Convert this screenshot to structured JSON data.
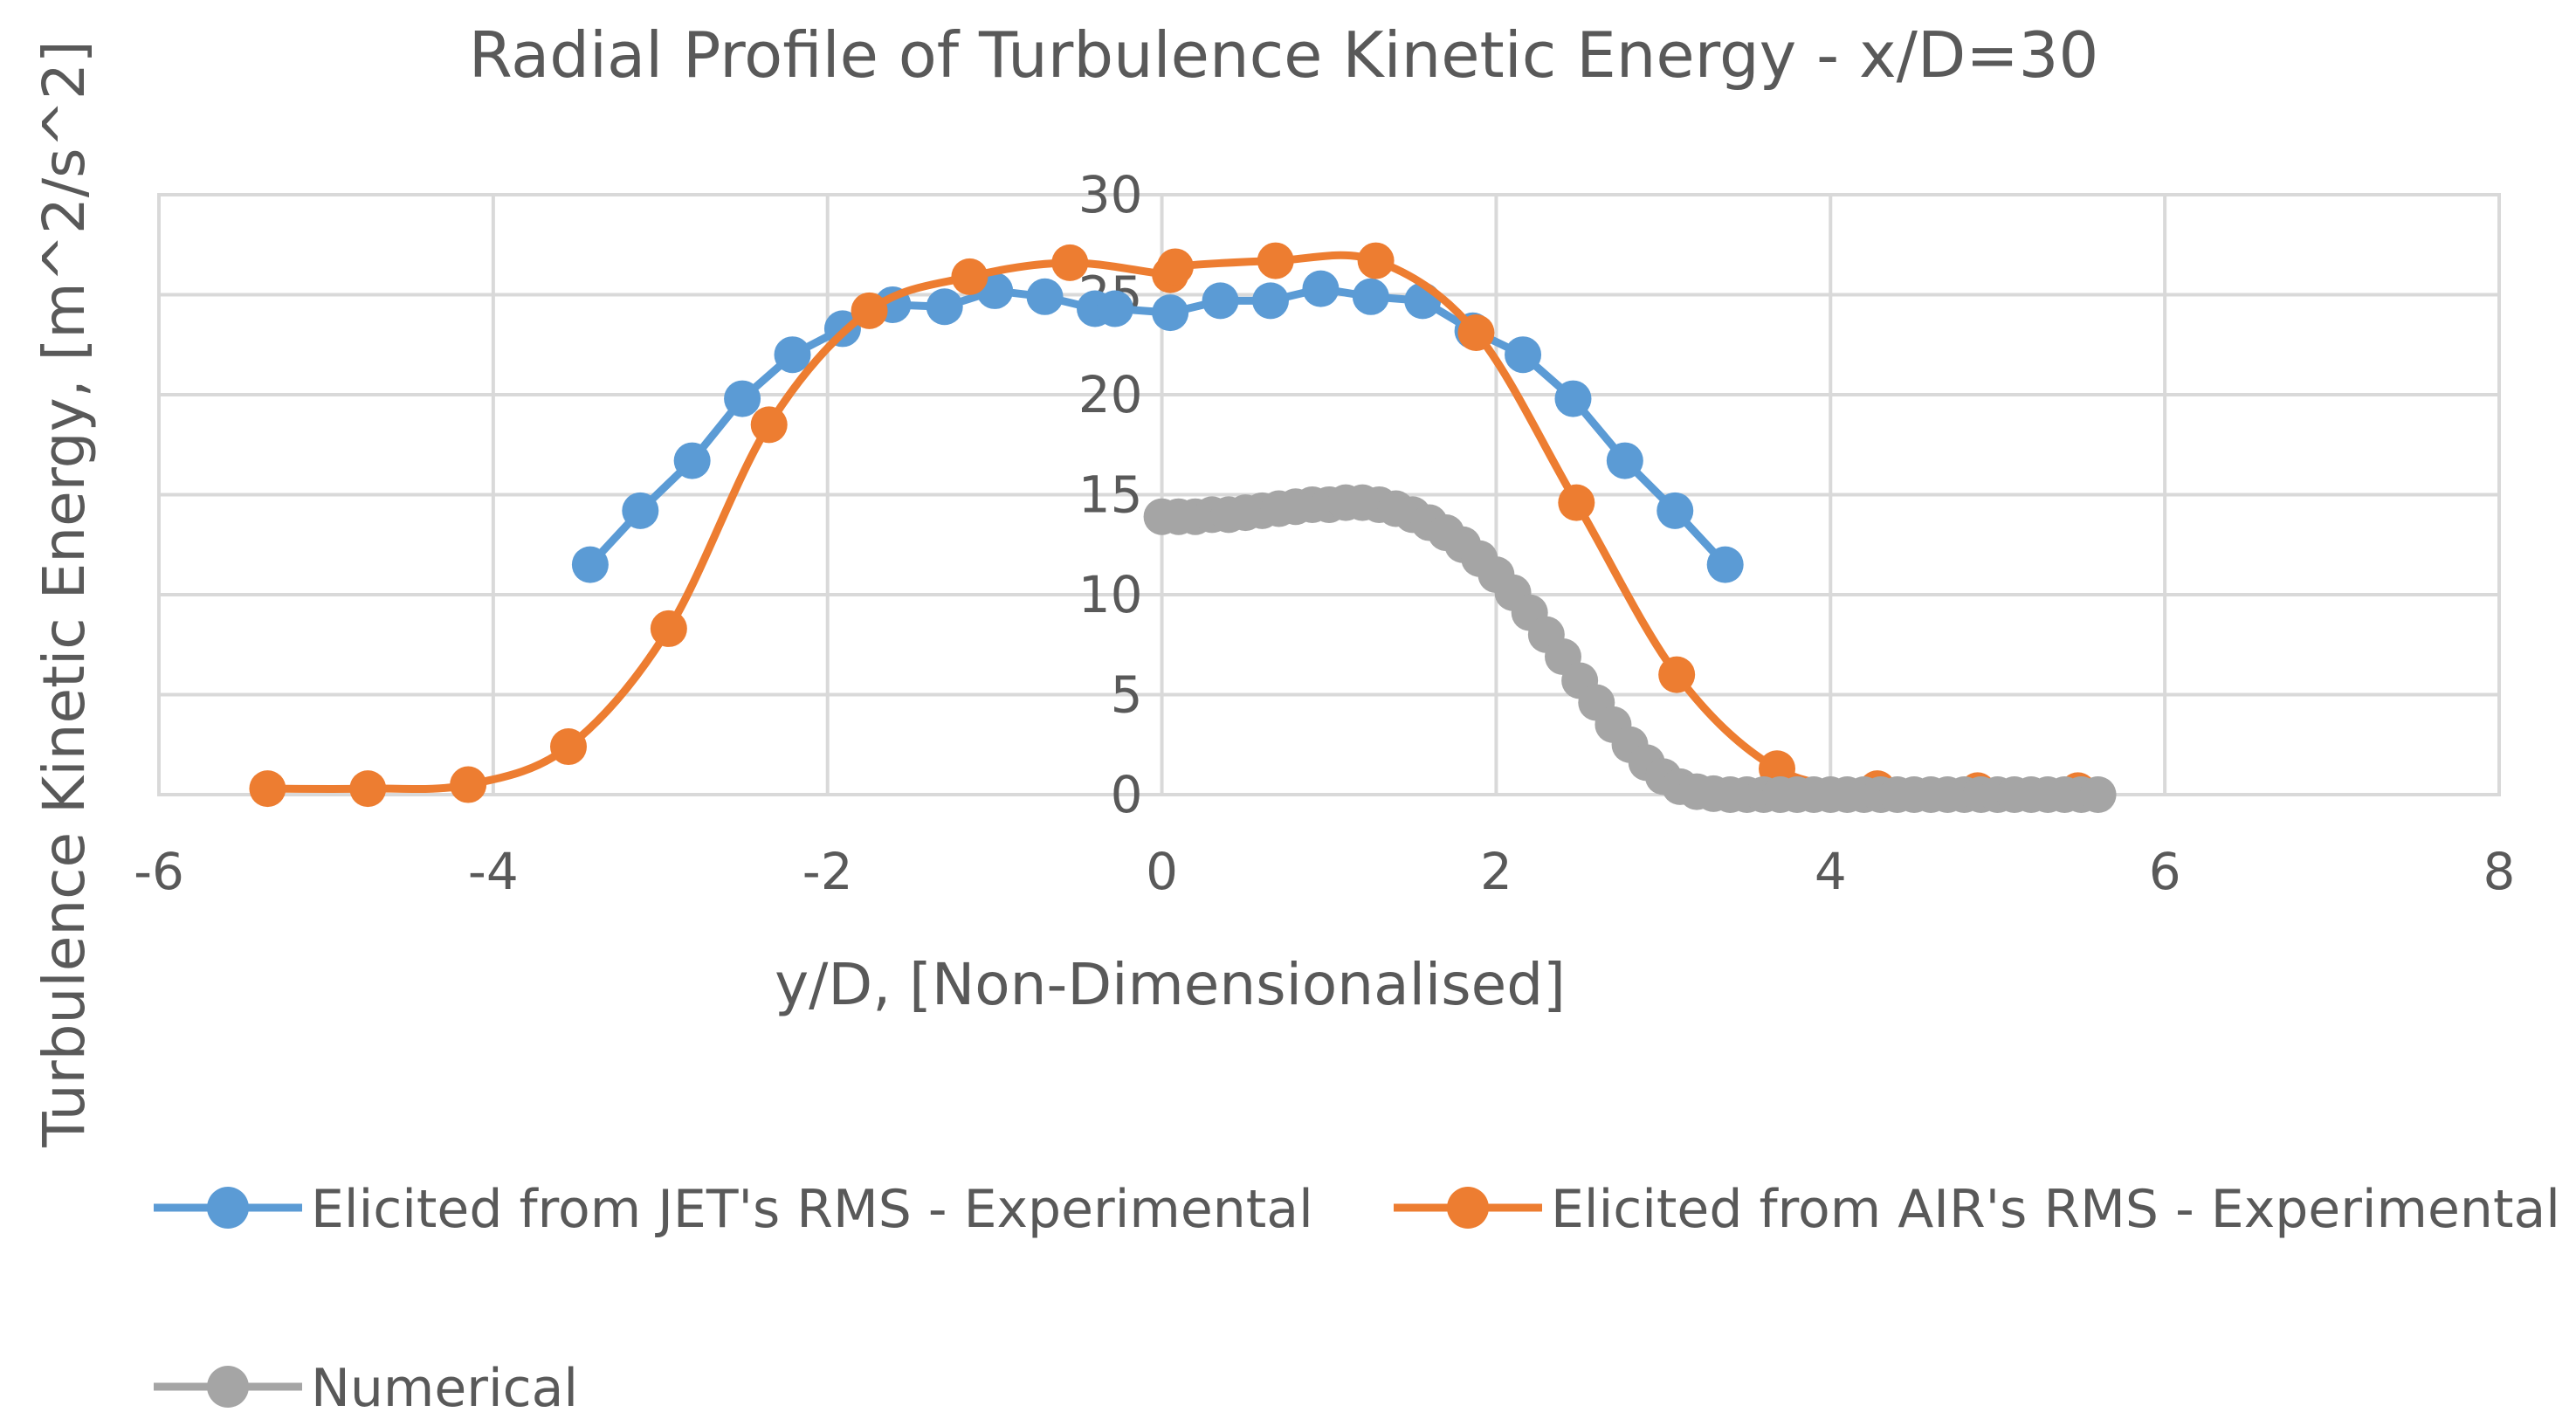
{
  "chart_data": {
    "type": "line",
    "title": "Radial Profile of Turbulence Kinetic Energy - x/D=30",
    "xlabel": "y/D, [Non-Dimensionalised]",
    "ylabel": "Turbulence Kinetic Energy, [m^2/s^2]",
    "xlim": [
      -6,
      8
    ],
    "ylim": [
      0,
      30
    ],
    "xticks": [
      -6,
      -4,
      -2,
      0,
      2,
      4,
      6,
      8
    ],
    "yticks": [
      0,
      5,
      10,
      15,
      20,
      25,
      30
    ],
    "grid": true,
    "legend_position": "bottom",
    "series": [
      {
        "name": "Elicited from JET's RMS - Experimental",
        "color": "#5b9bd5",
        "smooth": false,
        "markers": true,
        "x": [
          -3.42,
          -3.12,
          -2.81,
          -2.51,
          -2.21,
          -1.91,
          -1.61,
          -1.3,
          -1.0,
          -0.7,
          -0.4,
          -0.28,
          0.05,
          0.35,
          0.65,
          0.95,
          1.25,
          1.56,
          1.86,
          2.16,
          2.46,
          2.77,
          3.07,
          3.37
        ],
        "y": [
          11.5,
          14.2,
          16.7,
          19.8,
          22.0,
          23.3,
          24.5,
          24.4,
          25.2,
          24.9,
          24.3,
          24.3,
          24.1,
          24.7,
          24.7,
          25.3,
          24.9,
          24.7,
          23.2,
          22.0,
          19.8,
          16.7,
          14.2,
          11.5
        ]
      },
      {
        "name": "Elicited from AIR's RMS - Experimental",
        "color": "#ed7d31",
        "smooth": true,
        "markers": true,
        "x": [
          -5.35,
          -4.75,
          -4.15,
          -3.55,
          -2.95,
          -2.35,
          -1.75,
          -1.15,
          -0.55,
          0.05,
          0.08,
          0.68,
          1.28,
          1.88,
          2.48,
          3.08,
          3.68,
          4.28,
          4.88,
          5.48
        ],
        "y": [
          0.3,
          0.3,
          0.5,
          2.4,
          8.3,
          18.5,
          24.2,
          25.9,
          26.6,
          26.0,
          26.4,
          26.7,
          26.7,
          23.1,
          14.6,
          6.0,
          1.3,
          0.3,
          0.2,
          0.2
        ]
      },
      {
        "name": "Numerical",
        "color": "#a5a5a5",
        "smooth": true,
        "markers": true,
        "x": [
          0.0,
          0.1,
          0.2,
          0.3,
          0.4,
          0.5,
          0.6,
          0.7,
          0.8,
          0.9,
          1.0,
          1.1,
          1.2,
          1.3,
          1.4,
          1.5,
          1.6,
          1.7,
          1.8,
          1.9,
          2.0,
          2.1,
          2.2,
          2.3,
          2.4,
          2.5,
          2.6,
          2.7,
          2.8,
          2.9,
          3.0,
          3.1,
          3.2,
          3.3,
          3.4,
          3.5,
          3.6,
          3.7,
          3.8,
          3.9,
          4.0,
          4.1,
          4.2,
          4.3,
          4.4,
          4.5,
          4.6,
          4.7,
          4.8,
          4.9,
          5.0,
          5.1,
          5.2,
          5.3,
          5.4,
          5.5,
          5.6
        ],
        "y": [
          13.9,
          13.9,
          13.9,
          14.0,
          14.0,
          14.1,
          14.2,
          14.3,
          14.4,
          14.5,
          14.5,
          14.6,
          14.6,
          14.5,
          14.3,
          14.0,
          13.6,
          13.1,
          12.5,
          11.8,
          11.0,
          10.1,
          9.1,
          8.0,
          6.9,
          5.7,
          4.6,
          3.5,
          2.5,
          1.6,
          0.9,
          0.4,
          0.15,
          0.05,
          0.0,
          0.0,
          0.0,
          0.0,
          0.0,
          0.0,
          0.0,
          0.0,
          0.0,
          0.0,
          0.0,
          0.0,
          0.0,
          0.0,
          0.0,
          0.0,
          0.0,
          0.0,
          0.0,
          0.0,
          0.0,
          0.0,
          0.0
        ]
      }
    ]
  }
}
